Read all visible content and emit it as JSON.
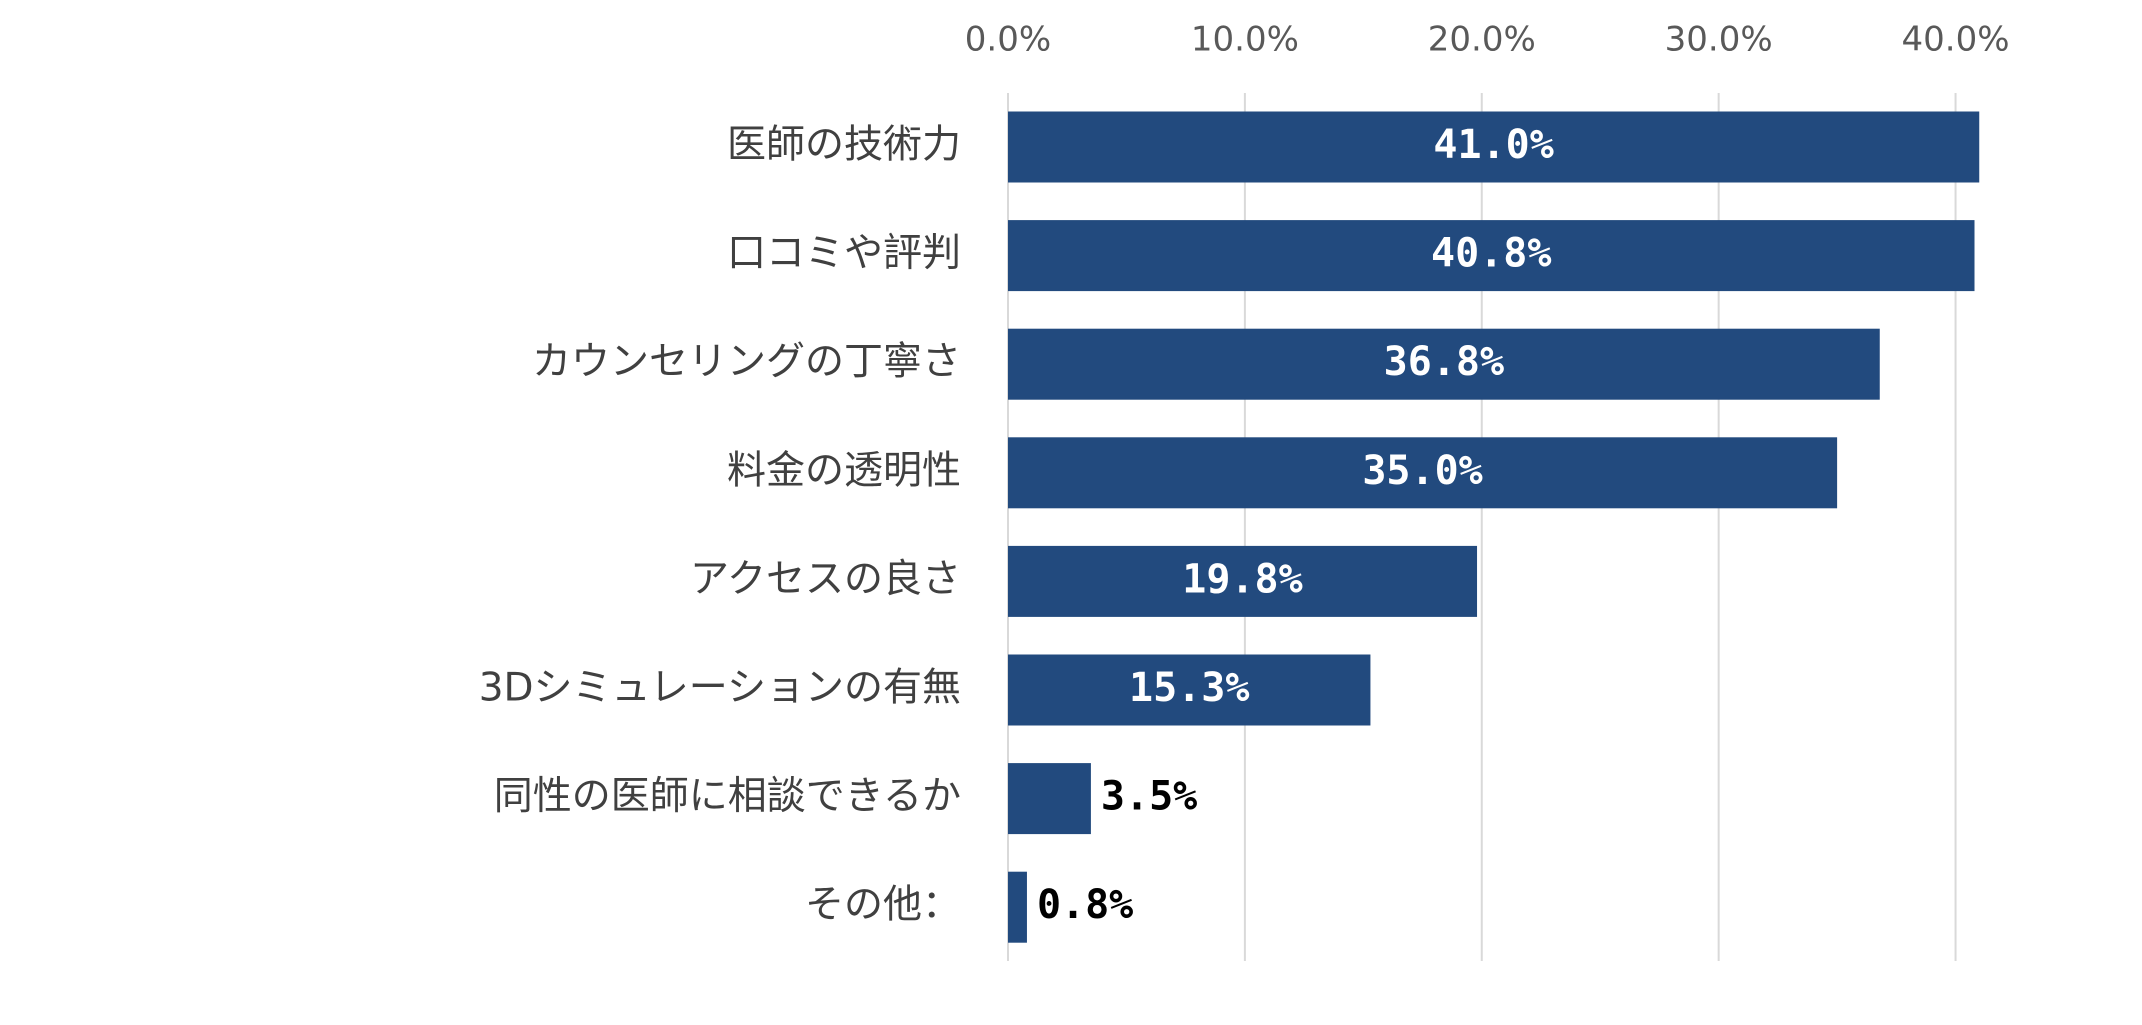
{
  "chart_data": {
    "type": "bar",
    "orientation": "horizontal",
    "categories": [
      "医師の技術力",
      "口コミや評判",
      "カウンセリングの丁寧さ",
      "料金の透明性",
      "アクセスの良さ",
      "3Dシミュレーションの有無",
      "同性の医師に相談できるか",
      "その他："
    ],
    "values": [
      41.0,
      40.8,
      36.8,
      35.0,
      19.8,
      15.3,
      3.5,
      0.8
    ],
    "value_labels": [
      "41.0%",
      "40.8%",
      "36.8%",
      "35.0%",
      "19.8%",
      "15.3%",
      "3.5%",
      "0.8%"
    ],
    "color": "#224a7e",
    "xlim": [
      0,
      45
    ],
    "xticks": [
      {
        "value": 0,
        "label": "0.0%"
      },
      {
        "value": 10,
        "label": "10.0%"
      },
      {
        "value": 20,
        "label": "20.0%"
      },
      {
        "value": 30,
        "label": "30.0%"
      },
      {
        "value": 40,
        "label": "40.0%"
      }
    ],
    "grid": true
  }
}
